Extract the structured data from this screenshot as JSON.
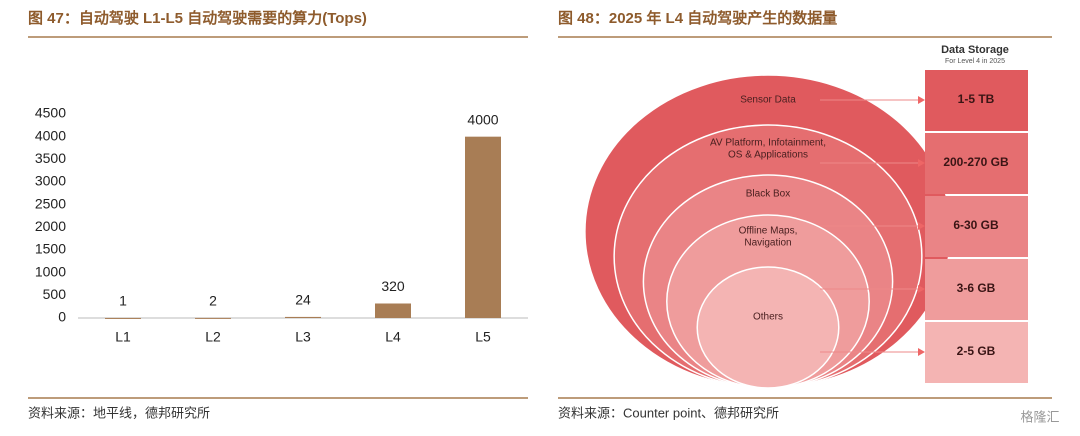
{
  "chart_data": {
    "type": "bar",
    "title": "图 47：自动驾驶 L1-L5 自动驾驶需要的算力(Tops)",
    "categories": [
      "L1",
      "L2",
      "L3",
      "L4",
      "L5"
    ],
    "values": [
      1,
      2,
      24,
      320,
      4000
    ],
    "color": "#a87d55",
    "ylim": [
      0,
      4500
    ],
    "yticks": [
      0,
      500,
      1000,
      1500,
      2000,
      2500,
      3000,
      3500,
      4000,
      4500
    ],
    "grid": false,
    "source": "资料来源：地平线，德邦研究所"
  },
  "figure_right": {
    "title": "图 48：2025 年 L4 自动驾驶产生的数据量",
    "storage_header": "Data Storage",
    "storage_subheader": "For Level 4 in 2025",
    "nodes": [
      {
        "label": [
          "Sensor Data"
        ],
        "storage": "1-5 TB",
        "color": "#e05a5e"
      },
      {
        "label": [
          "AV Platform, Infotainment,",
          "OS & Applications"
        ],
        "storage": "200-270 GB",
        "color": "#e56e70"
      },
      {
        "label": [
          "Black Box"
        ],
        "storage": "6-30 GB",
        "color": "#ea8486"
      },
      {
        "label": [
          "Offline Maps,",
          "Navigation"
        ],
        "storage": "3-6 GB",
        "color": "#ef9c9c"
      },
      {
        "label": [
          "Others"
        ],
        "storage": "2-5 GB",
        "color": "#f4b4b3"
      }
    ],
    "source": "资料来源：Counter point、德邦研究所"
  },
  "watermark": "格隆汇"
}
